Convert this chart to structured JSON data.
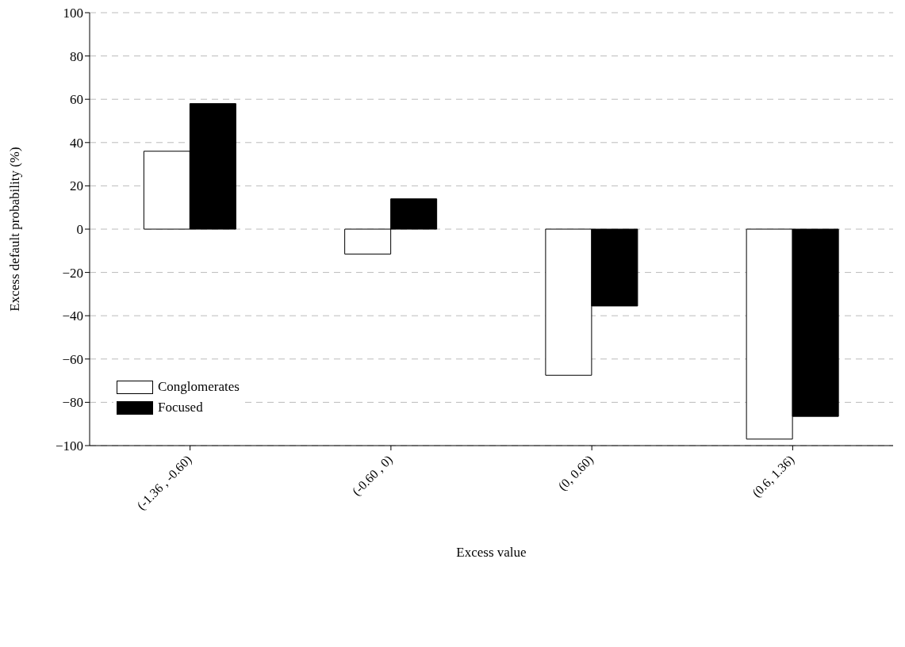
{
  "chart_data": {
    "type": "bar",
    "xlabel": "Excess value",
    "ylabel": "Excess default probability (%)",
    "categories": [
      "(-1.36 , -0.60)",
      "(-0.60 , 0)",
      "(0, 0.60)",
      "(0.6, 1.36)"
    ],
    "series": [
      {
        "name": "Conglomerates",
        "color": "#ffffff",
        "values": [
          36,
          -11.5,
          -67.5,
          -97
        ]
      },
      {
        "name": "Focused",
        "color": "#000000",
        "values": [
          58,
          14,
          -35.5,
          -86.5
        ]
      }
    ],
    "ylim": [
      -100,
      100
    ],
    "yticks": [
      -100,
      -80,
      -60,
      -40,
      -20,
      0,
      20,
      40,
      60,
      80,
      100
    ],
    "grid": "y",
    "legend": "bottom left"
  }
}
